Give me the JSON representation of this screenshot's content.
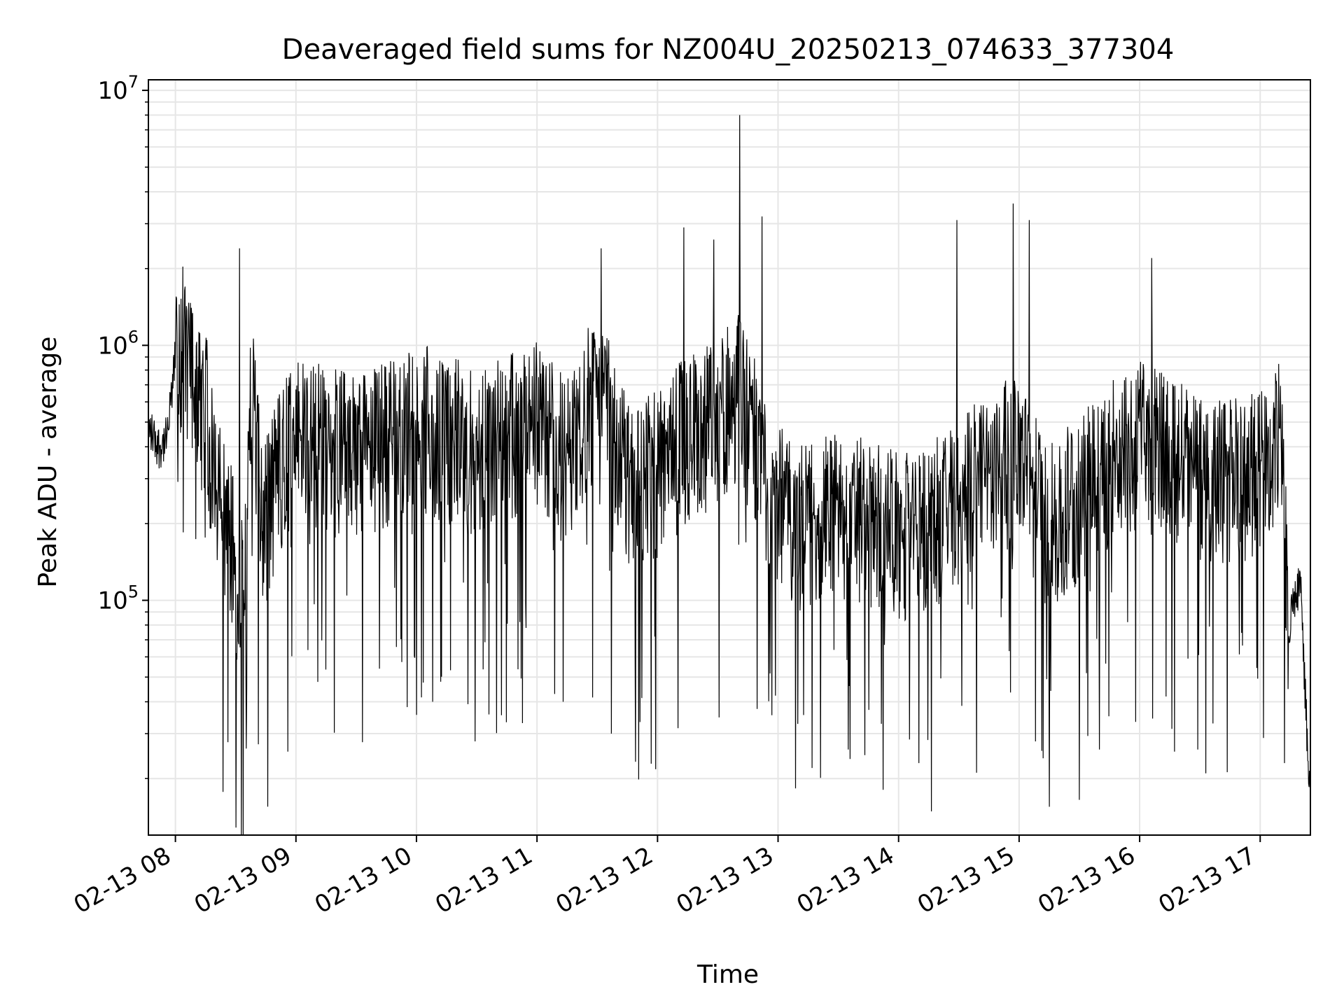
{
  "chart_data": {
    "type": "line",
    "title": "Deaveraged field sums for NZ004U_20250213_074633_377304",
    "xlabel": "Time",
    "ylabel": "Peak ADU - average",
    "y_scale": "log",
    "ylim": [
      12000,
      11000000
    ],
    "xlim": [
      "2025-02-13 07:46:33",
      "2025-02-13 17:25"
    ],
    "x_tick_labels": [
      "02-13 08",
      "02-13 09",
      "02-13 10",
      "02-13 11",
      "02-13 12",
      "02-13 13",
      "02-13 14",
      "02-13 15",
      "02-13 16",
      "02-13 17"
    ],
    "y_tick_labels": [
      {
        "base": "10",
        "exp": "5",
        "value": 100000
      },
      {
        "base": "10",
        "exp": "6",
        "value": 1000000
      },
      {
        "base": "10",
        "exp": "7",
        "value": 10000000
      }
    ],
    "grid": true,
    "line_color": "#000000",
    "grid_color": "#e6e6e6",
    "series": [
      {
        "points": [
          [
            "2025-02-13 07:47",
            470000
          ],
          [
            "2025-02-13 07:52",
            400000
          ],
          [
            "2025-02-13 07:56",
            430000
          ],
          [
            "2025-02-13 08:00",
            900000
          ],
          [
            "2025-02-13 08:04",
            1000000
          ],
          [
            "2025-02-13 08:10",
            700000
          ],
          [
            "2025-02-13 08:16",
            500000
          ],
          [
            "2025-02-13 08:20",
            300000
          ],
          [
            "2025-02-13 08:26",
            200000
          ],
          [
            "2025-02-13 08:30",
            130000
          ],
          [
            "2025-02-13 08:34",
            110000
          ],
          [
            "2025-02-13 08:38",
            700000
          ],
          [
            "2025-02-13 08:44",
            200000
          ],
          [
            "2025-02-13 08:50",
            300000
          ],
          [
            "2025-02-13 09:00",
            450000
          ],
          [
            "2025-02-13 09:15",
            400000
          ],
          [
            "2025-02-13 09:30",
            380000
          ],
          [
            "2025-02-13 09:45",
            420000
          ],
          [
            "2025-02-13 10:00",
            500000
          ],
          [
            "2025-02-13 10:15",
            450000
          ],
          [
            "2025-02-13 10:30",
            380000
          ],
          [
            "2025-02-13 10:45",
            450000
          ],
          [
            "2025-02-13 11:00",
            500000
          ],
          [
            "2025-02-13 11:15",
            350000
          ],
          [
            "2025-02-13 11:30",
            700000
          ],
          [
            "2025-02-13 11:45",
            300000
          ],
          [
            "2025-02-13 12:00",
            320000
          ],
          [
            "2025-02-13 12:15",
            450000
          ],
          [
            "2025-02-13 12:30",
            500000
          ],
          [
            "2025-02-13 12:40",
            650000
          ],
          [
            "2025-02-13 12:55",
            300000
          ],
          [
            "2025-02-13 13:10",
            200000
          ],
          [
            "2025-02-13 13:30",
            220000
          ],
          [
            "2025-02-13 13:50",
            200000
          ],
          [
            "2025-02-13 14:10",
            180000
          ],
          [
            "2025-02-13 14:30",
            250000
          ],
          [
            "2025-02-13 14:45",
            350000
          ],
          [
            "2025-02-13 15:00",
            350000
          ],
          [
            "2025-02-13 15:15",
            200000
          ],
          [
            "2025-02-13 15:30",
            250000
          ],
          [
            "2025-02-13 15:45",
            350000
          ],
          [
            "2025-02-13 16:00",
            420000
          ],
          [
            "2025-02-13 16:15",
            380000
          ],
          [
            "2025-02-13 16:30",
            320000
          ],
          [
            "2025-02-13 16:45",
            300000
          ],
          [
            "2025-02-13 17:00",
            330000
          ],
          [
            "2025-02-13 17:10",
            500000
          ],
          [
            "2025-02-13 17:14",
            80000
          ],
          [
            "2025-02-13 17:20",
            120000
          ],
          [
            "2025-02-13 17:25",
            15000
          ]
        ],
        "peaks": [
          [
            "2025-02-13 08:32",
            2400000
          ],
          [
            "2025-02-13 11:32",
            2400000
          ],
          [
            "2025-02-13 12:13",
            2900000
          ],
          [
            "2025-02-13 12:28",
            2600000
          ],
          [
            "2025-02-13 12:41",
            8000000
          ],
          [
            "2025-02-13 12:52",
            3200000
          ],
          [
            "2025-02-13 14:29",
            3100000
          ],
          [
            "2025-02-13 14:57",
            3600000
          ],
          [
            "2025-02-13 15:05",
            3100000
          ],
          [
            "2025-02-13 16:06",
            2200000
          ]
        ],
        "troughs": [
          [
            "2025-02-13 08:35",
            60000
          ],
          [
            "2025-02-13 10:08",
            40000
          ],
          [
            "2025-02-13 11:13",
            40000
          ],
          [
            "2025-02-13 11:37",
            30000
          ],
          [
            "2025-02-13 13:17",
            22000
          ],
          [
            "2025-02-13 13:35",
            26000
          ],
          [
            "2025-02-13 14:10",
            23000
          ],
          [
            "2025-02-13 15:12",
            24000
          ],
          [
            "2025-02-13 15:40",
            26000
          ],
          [
            "2025-02-13 16:29",
            26000
          ],
          [
            "2025-02-13 17:12",
            23000
          ]
        ]
      }
    ]
  }
}
